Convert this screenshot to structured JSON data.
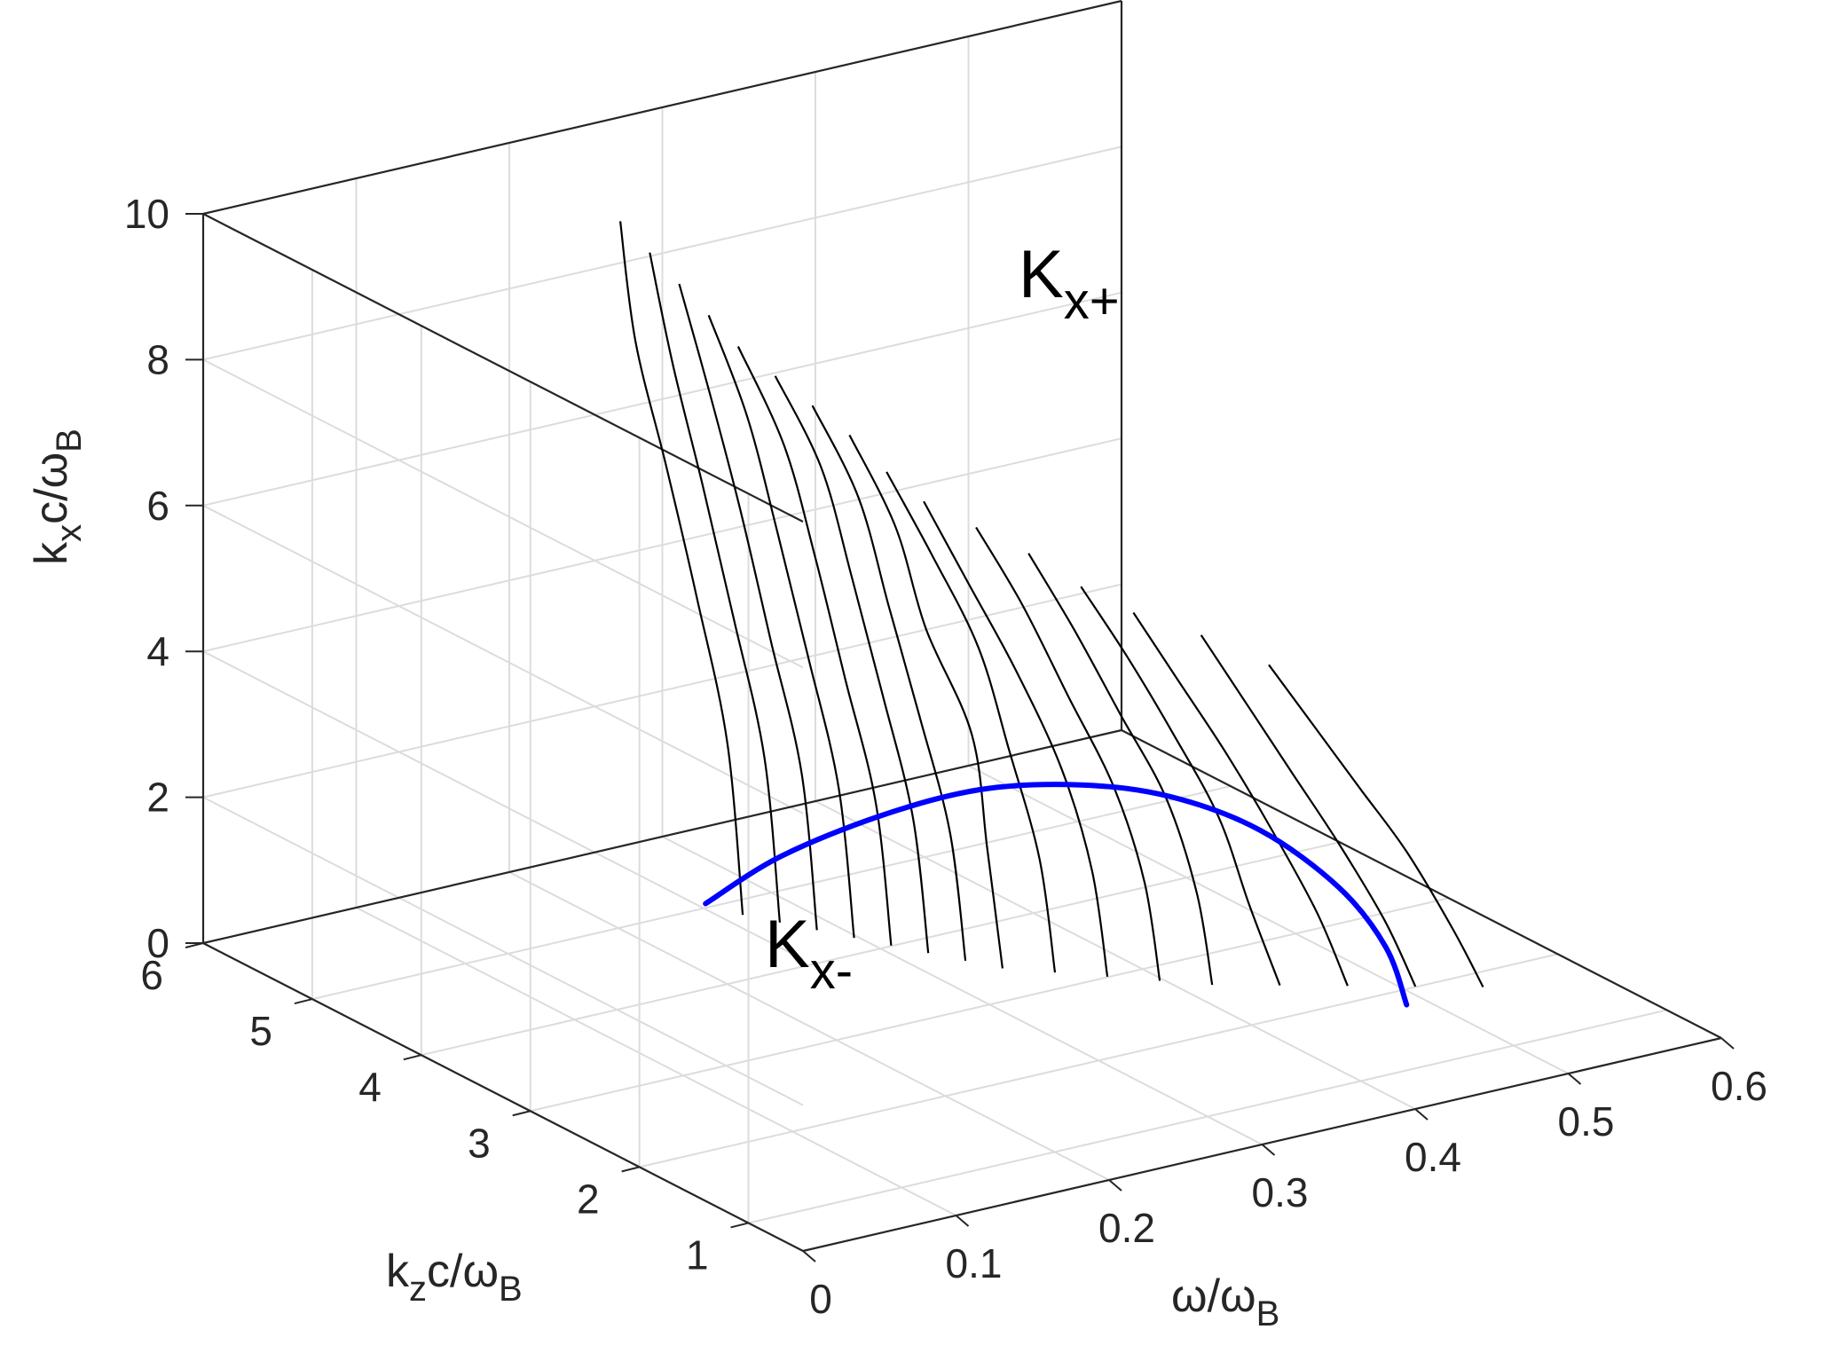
{
  "chart_data": {
    "type": "line",
    "projection": "3d",
    "axes": {
      "x": {
        "label_main": "ω/ω",
        "label_sub": "B",
        "lim": [
          0,
          0.6
        ],
        "ticks": [
          "0",
          "0.1",
          "0.2",
          "0.3",
          "0.4",
          "0.5",
          "0.6"
        ]
      },
      "y": {
        "label_main": "k",
        "label_sub1": "z",
        "label_mid": "c/ω",
        "label_sub2": "B",
        "lim": [
          0.5,
          6
        ],
        "ticks": [
          "1",
          "2",
          "3",
          "4",
          "5",
          "6"
        ]
      },
      "z": {
        "label_main": "k",
        "label_sub1": "x",
        "label_mid": "c/ω",
        "label_sub2": "B",
        "lim": [
          0,
          10
        ],
        "ticks": [
          "0",
          "2",
          "4",
          "6",
          "8",
          "10"
        ]
      }
    },
    "grid": true,
    "box": true,
    "annotations": [
      {
        "main": "K",
        "sub": "x+"
      },
      {
        "main": "K",
        "sub": "x-"
      }
    ],
    "colors": {
      "curves": "#000000",
      "highlight": "#0000ff",
      "axis": "#262626",
      "grid": "#dcdcdc"
    },
    "series": [
      {
        "kz": 1.0,
        "omega": [
          0.48,
          0.46,
          0.43,
          0.4,
          0.37,
          0.34
        ],
        "kx": [
          0.9,
          1.8,
          3.0,
          4.0,
          5.0,
          6.0
        ]
      },
      {
        "kz": 1.2,
        "omega": [
          0.45,
          0.43,
          0.4,
          0.37,
          0.34,
          0.31
        ],
        "kx": [
          0.9,
          1.9,
          3.1,
          4.2,
          5.3,
          6.4
        ]
      },
      {
        "kz": 1.4,
        "omega": [
          0.42,
          0.4,
          0.37,
          0.34,
          0.31,
          0.28
        ],
        "kx": [
          0.9,
          2.0,
          3.3,
          4.5,
          5.6,
          6.7
        ]
      },
      {
        "kz": 1.6,
        "omega": [
          0.39,
          0.37,
          0.35,
          0.32,
          0.29,
          0.26
        ],
        "kx": [
          0.9,
          2.1,
          3.4,
          4.7,
          5.9,
          7.0
        ]
      },
      {
        "kz": 1.8,
        "omega": [
          0.36,
          0.35,
          0.33,
          0.3,
          0.27,
          0.24
        ],
        "kx": [
          0.9,
          2.2,
          3.6,
          4.9,
          6.2,
          7.4
        ]
      },
      {
        "kz": 2.0,
        "omega": [
          0.34,
          0.33,
          0.31,
          0.28,
          0.25,
          0.22
        ],
        "kx": [
          0.9,
          2.3,
          3.7,
          5.1,
          6.5,
          7.7
        ]
      },
      {
        "kz": 2.2,
        "omega": [
          0.32,
          0.31,
          0.29,
          0.26,
          0.23,
          0.2
        ],
        "kx": [
          0.9,
          2.4,
          3.9,
          5.4,
          6.7,
          8.0
        ]
      },
      {
        "kz": 2.4,
        "omega": [
          0.3,
          0.29,
          0.27,
          0.25,
          0.22,
          0.19
        ],
        "kx": [
          0.9,
          2.5,
          4.1,
          5.6,
          7.0,
          8.3
        ]
      },
      {
        "kz": 2.6,
        "omega": [
          0.28,
          0.27,
          0.26,
          0.23,
          0.21,
          0.18
        ],
        "kx": [
          0.9,
          2.6,
          4.2,
          5.8,
          7.3,
          8.7
        ]
      },
      {
        "kz": 2.8,
        "omega": [
          0.27,
          0.26,
          0.24,
          0.22,
          0.2,
          0.17
        ],
        "kx": [
          0.9,
          2.7,
          4.4,
          6.0,
          7.6,
          9.0
        ]
      },
      {
        "kz": 3.0,
        "omega": [
          0.26,
          0.25,
          0.23,
          0.21,
          0.19,
          0.16
        ],
        "kx": [
          0.9,
          2.8,
          4.6,
          6.3,
          7.9,
          9.3
        ]
      },
      {
        "kz": 3.2,
        "omega": [
          0.25,
          0.24,
          0.22,
          0.2,
          0.18,
          0.15
        ],
        "kx": [
          0.9,
          2.9,
          4.7,
          6.5,
          8.1,
          9.6
        ]
      },
      {
        "kz": 3.4,
        "omega": [
          0.24,
          0.23,
          0.21,
          0.19,
          0.17,
          0.145
        ],
        "kx": [
          0.9,
          3.0,
          4.9,
          6.7,
          8.4,
          9.9
        ]
      },
      {
        "kz": 3.6,
        "omega": [
          0.23,
          0.22,
          0.2,
          0.18,
          0.16,
          0.14
        ],
        "kx": [
          0.9,
          3.1,
          5.0,
          6.9,
          8.6,
          10.2
        ]
      },
      {
        "kz": 3.8,
        "omega": [
          0.22,
          0.21,
          0.19,
          0.17,
          0.15,
          0.135
        ],
        "kx": [
          0.9,
          3.2,
          5.2,
          7.1,
          8.9,
          10.5
        ]
      },
      {
        "kz": 4.0,
        "omega": [
          0.21,
          0.2,
          0.18,
          0.16,
          0.14,
          0.13
        ],
        "kx": [
          0.9,
          3.3,
          5.4,
          7.3,
          9.1,
          10.8
        ]
      }
    ],
    "highlight_curve": {
      "color": "#0000ff",
      "points": [
        {
          "kz": 4.2,
          "omega": 0.2,
          "kx": 0.95
        },
        {
          "kz": 3.8,
          "omega": 0.22,
          "kx": 1.8
        },
        {
          "kz": 3.3,
          "omega": 0.25,
          "kx": 2.6
        },
        {
          "kz": 2.8,
          "omega": 0.28,
          "kx": 3.2
        },
        {
          "kz": 2.3,
          "omega": 0.31,
          "kx": 3.5
        },
        {
          "kz": 1.9,
          "omega": 0.34,
          "kx": 3.5
        },
        {
          "kz": 1.5,
          "omega": 0.37,
          "kx": 3.2
        },
        {
          "kz": 1.2,
          "omega": 0.4,
          "kx": 2.5
        },
        {
          "kz": 1.05,
          "omega": 0.42,
          "kx": 1.7
        },
        {
          "kz": 1.0,
          "omega": 0.43,
          "kx": 0.9
        }
      ]
    }
  }
}
